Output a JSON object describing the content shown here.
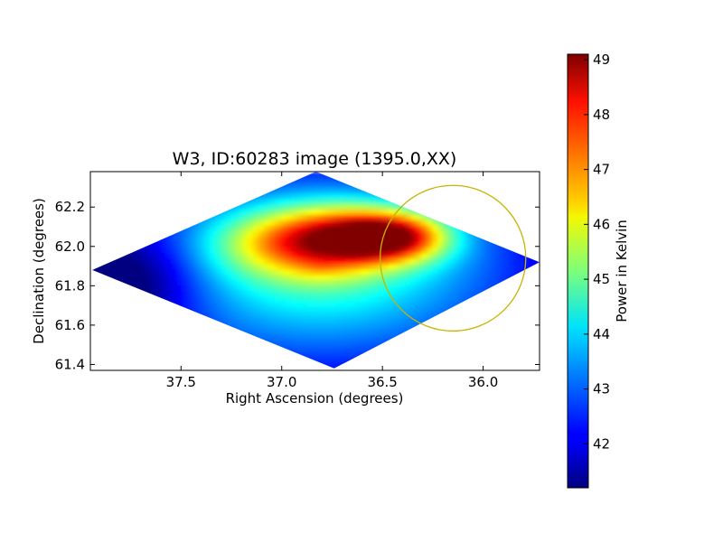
{
  "chart_data": {
    "type": "heatmap",
    "title": "W3, ID:60283 image (1395.0,XX)",
    "xlabel": "Right Ascension (degrees)",
    "ylabel": "Declination (degrees)",
    "xlim": [
      37.95,
      35.72
    ],
    "ylim": [
      61.37,
      62.38
    ],
    "x_reversed": true,
    "xticks": [
      37.5,
      37.0,
      36.5,
      36.0
    ],
    "xtick_labels": [
      "37.5",
      "37.0",
      "36.5",
      "36.0"
    ],
    "yticks": [
      61.4,
      61.6,
      61.8,
      62.0,
      62.2
    ],
    "ytick_labels": [
      "61.4",
      "61.6",
      "61.8",
      "62.0",
      "62.2"
    ],
    "colorbar": {
      "label": "Power in Kelvin",
      "range": [
        41.2,
        49.1
      ],
      "colormap": "jet",
      "ticks": [
        42,
        43,
        44,
        45,
        46,
        47,
        48,
        49
      ],
      "tick_labels": [
        "42",
        "43",
        "44",
        "45",
        "46",
        "47",
        "48",
        "49"
      ]
    },
    "footprint": [
      [
        37.94,
        61.88
      ],
      [
        36.83,
        62.38
      ],
      [
        35.72,
        61.92
      ],
      [
        36.74,
        61.38
      ]
    ],
    "field_peaks": [
      {
        "ra": 36.45,
        "dec": 62.05,
        "value": 49.0,
        "spread": 0.22
      },
      {
        "ra": 36.7,
        "dec": 62.05,
        "value": 48.0,
        "spread": 0.3
      },
      {
        "ra": 37.0,
        "dec": 62.02,
        "value": 46.6,
        "spread": 0.3
      }
    ],
    "field_min": {
      "ra": 37.75,
      "dec": 61.82,
      "value": 41.2
    },
    "circle": {
      "ra": 36.15,
      "dec": 61.94,
      "radius_deg": 0.37,
      "color": "#c8b400"
    }
  },
  "colors": {
    "axes_edge": "#000000",
    "circle": "#c8b400"
  }
}
